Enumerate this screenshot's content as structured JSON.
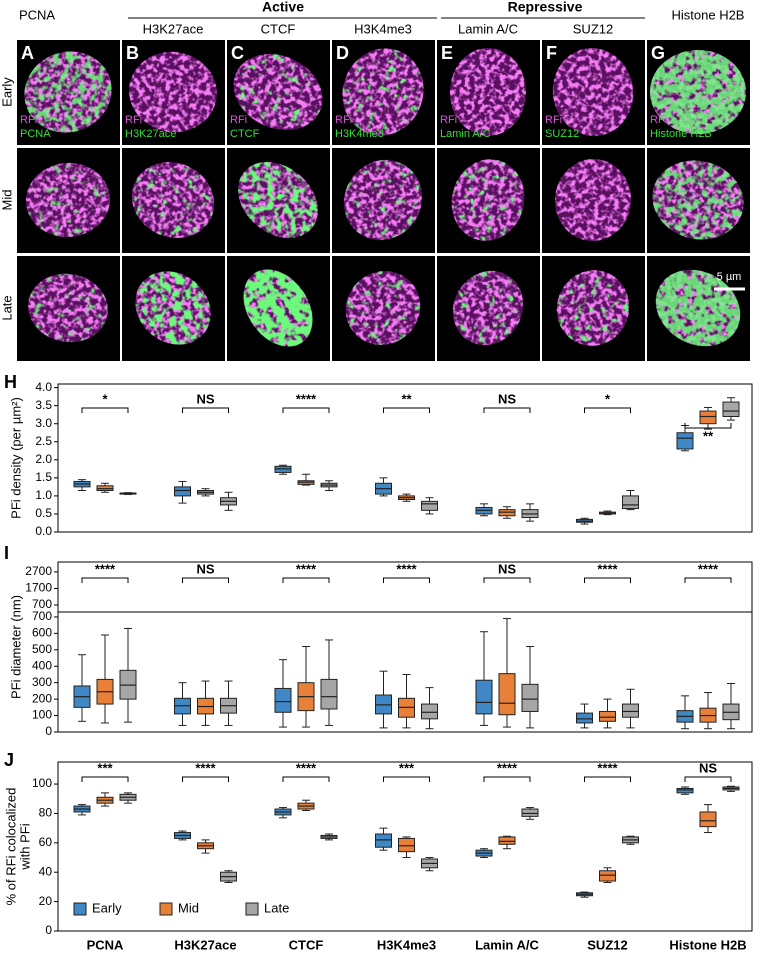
{
  "image_grid": {
    "groups": [
      "Active",
      "Repressive"
    ],
    "columns": [
      "PCNA",
      "H3K27ace",
      "CTCF",
      "H3K4me3",
      "Lamin A/C",
      "SUZ12",
      "Histone H2B"
    ],
    "rows": [
      "Early",
      "Mid",
      "Late"
    ],
    "panel_letters": [
      "A",
      "B",
      "C",
      "D",
      "E",
      "F",
      "G"
    ],
    "channel_label": "RFi",
    "scale_bar": "5 µm"
  },
  "chart_data": [
    {
      "type": "box",
      "panel": "H",
      "y_label": "PFi density (per µm²)",
      "ylim": [
        0,
        4.1
      ],
      "yticks": [
        {
          "value": 0,
          "label": "0.0"
        },
        0.5,
        {
          "value": 1,
          "label": "1.0"
        },
        1.5,
        {
          "value": 2,
          "label": "2.0"
        },
        2.5,
        {
          "value": 3,
          "label": "3.0"
        },
        3.5,
        {
          "value": 4,
          "label": "4.0"
        }
      ],
      "series": [
        {
          "color": "#3f88c5",
          "q1": [
            1.25,
            1.0,
            1.65,
            1.05,
            0.5,
            0.27,
            2.3
          ],
          "median": [
            1.33,
            1.15,
            1.75,
            1.2,
            0.6,
            0.3,
            2.6
          ],
          "q3": [
            1.4,
            1.25,
            1.82,
            1.35,
            0.68,
            0.35,
            2.75
          ],
          "whislo": [
            1.15,
            0.8,
            1.6,
            1.0,
            0.45,
            0.22,
            2.25
          ],
          "whishi": [
            1.45,
            1.4,
            1.85,
            1.5,
            0.78,
            0.38,
            2.95
          ]
        },
        {
          "color": "#e8803a",
          "q1": [
            1.15,
            1.05,
            1.32,
            0.9,
            0.45,
            0.5,
            3.0
          ],
          "median": [
            1.2,
            1.1,
            1.38,
            0.95,
            0.55,
            0.52,
            3.2
          ],
          "q3": [
            1.28,
            1.15,
            1.42,
            1.0,
            0.62,
            0.55,
            3.35
          ],
          "whislo": [
            1.1,
            1.0,
            1.3,
            0.85,
            0.38,
            0.48,
            2.85
          ],
          "whishi": [
            1.35,
            1.2,
            1.6,
            1.05,
            0.7,
            0.58,
            3.45
          ]
        },
        {
          "color": "#a6a6a6",
          "q1": [
            1.05,
            0.75,
            1.25,
            0.6,
            0.4,
            0.65,
            3.2
          ],
          "median": [
            1.07,
            0.85,
            1.3,
            0.78,
            0.5,
            0.75,
            3.35
          ],
          "q3": [
            1.08,
            0.95,
            1.35,
            0.85,
            0.62,
            1.0,
            3.6
          ],
          "whislo": [
            1.04,
            0.6,
            1.15,
            0.5,
            0.3,
            0.62,
            3.1
          ],
          "whishi": [
            1.09,
            1.1,
            1.42,
            0.95,
            0.78,
            1.15,
            3.72
          ]
        }
      ],
      "significance": [
        "*",
        "NS",
        "****",
        "**",
        "NS",
        "*",
        "**"
      ]
    },
    {
      "type": "box",
      "panel": "I",
      "y_label": "PFi diameter (nm)",
      "ylim": [
        0,
        730
      ],
      "yticks": [
        0,
        100,
        200,
        300,
        400,
        500,
        600,
        700
      ],
      "ylim_upper": [
        700,
        3300
      ],
      "yticks_upper": [
        700,
        1700,
        2700
      ],
      "series": [
        {
          "color": "#3f88c5",
          "q1": [
            150,
            110,
            120,
            110,
            110,
            55,
            60
          ],
          "median": [
            215,
            160,
            185,
            165,
            180,
            80,
            95
          ],
          "q3": [
            280,
            205,
            265,
            225,
            315,
            115,
            130
          ],
          "whislo": [
            65,
            40,
            30,
            25,
            40,
            25,
            20
          ],
          "whishi": [
            470,
            300,
            440,
            370,
            610,
            170,
            220
          ]
        },
        {
          "color": "#e8803a",
          "q1": [
            170,
            110,
            130,
            90,
            105,
            65,
            60
          ],
          "median": [
            245,
            155,
            215,
            150,
            175,
            90,
            100
          ],
          "q3": [
            320,
            205,
            300,
            205,
            355,
            125,
            145
          ],
          "whislo": [
            55,
            40,
            30,
            25,
            30,
            25,
            20
          ],
          "whishi": [
            590,
            310,
            520,
            350,
            690,
            200,
            240
          ]
        },
        {
          "color": "#a6a6a6",
          "q1": [
            200,
            115,
            140,
            80,
            125,
            90,
            75
          ],
          "median": [
            285,
            160,
            215,
            120,
            200,
            125,
            120
          ],
          "q3": [
            375,
            205,
            320,
            170,
            290,
            170,
            170
          ],
          "whislo": [
            60,
            40,
            40,
            20,
            25,
            25,
            20
          ],
          "whishi": [
            630,
            310,
            560,
            270,
            520,
            260,
            295
          ]
        }
      ],
      "significance": [
        "****",
        "NS",
        "****",
        "****",
        "NS",
        "****",
        "****"
      ]
    },
    {
      "type": "box",
      "panel": "J",
      "y_label": [
        "% of RFi colocalized",
        "with PFi"
      ],
      "ylim": [
        0,
        115
      ],
      "yticks": [
        0,
        20,
        40,
        60,
        80,
        100
      ],
      "categories": [
        "PCNA",
        "H3K27ace",
        "CTCF",
        "H3K4me3",
        "Lamin A/C",
        "SUZ12",
        "Histone H2B"
      ],
      "legend": "lower left",
      "series": [
        {
          "name": "Early",
          "color": "#3f88c5",
          "q1": [
            81,
            63,
            79,
            57,
            51,
            24,
            94
          ],
          "median": [
            83,
            65,
            81,
            62,
            53,
            25,
            96
          ],
          "q3": [
            85,
            67,
            83,
            66,
            55,
            26,
            97
          ],
          "whislo": [
            79,
            62,
            77,
            55,
            50,
            23,
            93
          ],
          "whishi": [
            86,
            68,
            84,
            70,
            56,
            26.5,
            98
          ]
        },
        {
          "name": "Mid",
          "color": "#e8803a",
          "q1": [
            87,
            56,
            83,
            54,
            59,
            34,
            71
          ],
          "median": [
            89,
            58,
            85,
            58,
            61,
            38,
            75
          ],
          "q3": [
            91,
            60,
            87,
            63,
            64,
            41,
            81
          ],
          "whislo": [
            85,
            53,
            82,
            50,
            56,
            33,
            67
          ],
          "whishi": [
            94,
            62,
            89,
            64,
            64.5,
            43,
            86
          ]
        },
        {
          "name": "Late",
          "color": "#a6a6a6",
          "q1": [
            89,
            34,
            63,
            43,
            78,
            60,
            96
          ],
          "median": [
            91,
            37,
            64,
            46,
            80,
            62,
            97
          ],
          "q3": [
            93,
            40,
            65,
            49,
            83,
            64,
            98
          ],
          "whislo": [
            87,
            33,
            62,
            41,
            76,
            59,
            95
          ],
          "whishi": [
            94,
            41,
            66,
            50,
            84,
            64.5,
            98.5
          ]
        }
      ],
      "significance": [
        "***",
        "****",
        "****",
        "***",
        "****",
        "****",
        "NS"
      ]
    }
  ]
}
